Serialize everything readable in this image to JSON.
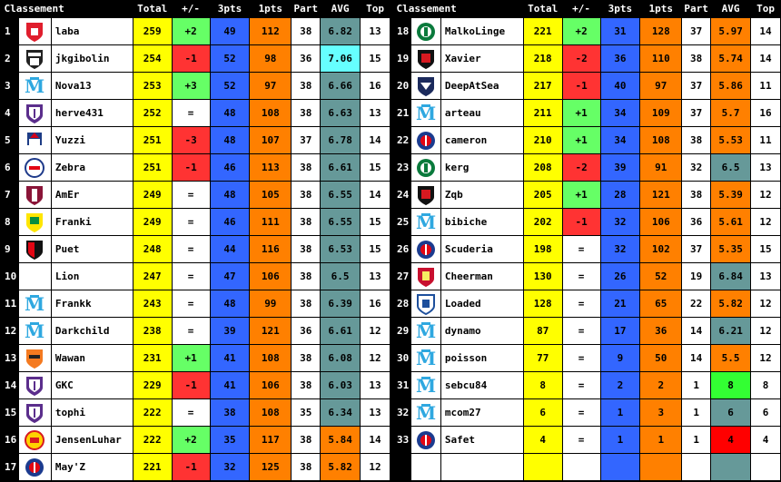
{
  "header": {
    "classement": "Classement",
    "total": "Total",
    "diff": "+/-",
    "pts3": "3pts",
    "pts1": "1pts",
    "part": "Part",
    "avg": "AVG",
    "top": "Top"
  },
  "colors": {
    "total": "#ffff00",
    "positive": "#66ff66",
    "negative": "#ff3333",
    "pts3": "#3366ff",
    "pts1": "#ff8000",
    "avg_default": "#669999",
    "avg_cyan": "#66ffff",
    "avg_orange": "#ff8000",
    "avg_green": "#33ff33",
    "avg_red": "#ff0000"
  },
  "left_rows": [
    {
      "rank": "1",
      "logo": "lille-crest",
      "name": "laba",
      "total": "259",
      "diff": "+2",
      "pts3": "49",
      "pts1": "112",
      "part": "38",
      "avg": "6.82",
      "top": "13",
      "avg_style": "default"
    },
    {
      "rank": "2",
      "logo": "angers-crest",
      "name": "jkgibolin",
      "total": "254",
      "diff": "-1",
      "pts3": "52",
      "pts1": "98",
      "part": "36",
      "avg": "7.06",
      "top": "15",
      "avg_style": "cyan"
    },
    {
      "rank": "3",
      "logo": "marseille-crest",
      "name": "Nova13",
      "total": "253",
      "diff": "+3",
      "pts3": "52",
      "pts1": "97",
      "part": "38",
      "avg": "6.66",
      "top": "16",
      "avg_style": "default"
    },
    {
      "rank": "4",
      "logo": "toulouse-crest",
      "name": "herve431",
      "total": "252",
      "diff": "=",
      "pts3": "48",
      "pts1": "108",
      "part": "38",
      "avg": "6.63",
      "top": "13",
      "avg_style": "default"
    },
    {
      "rank": "5",
      "logo": "caen-crest",
      "name": "Yuzzi",
      "total": "251",
      "diff": "-3",
      "pts3": "48",
      "pts1": "107",
      "part": "37",
      "avg": "6.78",
      "top": "14",
      "avg_style": "default"
    },
    {
      "rank": "6",
      "logo": "lyon-crest",
      "name": "Zebra",
      "total": "251",
      "diff": "-1",
      "pts3": "46",
      "pts1": "113",
      "part": "38",
      "avg": "6.61",
      "top": "15",
      "avg_style": "default"
    },
    {
      "rank": "7",
      "logo": "metz-crest",
      "name": "AmEr",
      "total": "249",
      "diff": "=",
      "pts3": "48",
      "pts1": "105",
      "part": "38",
      "avg": "6.55",
      "top": "14",
      "avg_style": "default"
    },
    {
      "rank": "8",
      "logo": "nantes-crest",
      "name": "Franki",
      "total": "249",
      "diff": "=",
      "pts3": "46",
      "pts1": "111",
      "part": "38",
      "avg": "6.55",
      "top": "15",
      "avg_style": "default"
    },
    {
      "rank": "9",
      "logo": "rennes-crest",
      "name": "Puet",
      "total": "248",
      "diff": "=",
      "pts3": "44",
      "pts1": "116",
      "part": "38",
      "avg": "6.53",
      "top": "15",
      "avg_style": "default"
    },
    {
      "rank": "10",
      "logo": "",
      "name": "Lion",
      "total": "247",
      "diff": "=",
      "pts3": "47",
      "pts1": "106",
      "part": "38",
      "avg": "6.5",
      "top": "13",
      "avg_style": "default"
    },
    {
      "rank": "11",
      "logo": "marseille-crest",
      "name": "Frankk",
      "total": "243",
      "diff": "=",
      "pts3": "48",
      "pts1": "99",
      "part": "38",
      "avg": "6.39",
      "top": "16",
      "avg_style": "default"
    },
    {
      "rank": "12",
      "logo": "marseille-crest",
      "name": "Darkchild",
      "total": "238",
      "diff": "=",
      "pts3": "39",
      "pts1": "121",
      "part": "36",
      "avg": "6.61",
      "top": "12",
      "avg_style": "default"
    },
    {
      "rank": "13",
      "logo": "lorient-crest",
      "name": "Wawan",
      "total": "231",
      "diff": "+1",
      "pts3": "41",
      "pts1": "108",
      "part": "38",
      "avg": "6.08",
      "top": "12",
      "avg_style": "default"
    },
    {
      "rank": "14",
      "logo": "toulouse-crest",
      "name": "GKC",
      "total": "229",
      "diff": "-1",
      "pts3": "41",
      "pts1": "106",
      "part": "38",
      "avg": "6.03",
      "top": "13",
      "avg_style": "default"
    },
    {
      "rank": "15",
      "logo": "toulouse-crest",
      "name": "tophi",
      "total": "222",
      "diff": "=",
      "pts3": "38",
      "pts1": "108",
      "part": "35",
      "avg": "6.34",
      "top": "13",
      "avg_style": "default"
    },
    {
      "rank": "16",
      "logo": "manutd-crest",
      "name": "JensenLuhar",
      "total": "222",
      "diff": "+2",
      "pts3": "35",
      "pts1": "117",
      "part": "38",
      "avg": "5.84",
      "top": "14",
      "avg_style": "orange"
    },
    {
      "rank": "17",
      "logo": "psg-crest",
      "name": "May'Z",
      "total": "221",
      "diff": "-1",
      "pts3": "32",
      "pts1": "125",
      "part": "38",
      "avg": "5.82",
      "top": "12",
      "avg_style": "orange"
    }
  ],
  "right_rows": [
    {
      "rank": "18",
      "logo": "stetienne-crest",
      "name": "MalkoLinge",
      "total": "221",
      "diff": "+2",
      "pts3": "31",
      "pts1": "128",
      "part": "37",
      "avg": "5.97",
      "top": "14",
      "avg_style": "orange"
    },
    {
      "rank": "19",
      "logo": "nice-crest",
      "name": "Xavier",
      "total": "218",
      "diff": "-2",
      "pts3": "36",
      "pts1": "110",
      "part": "38",
      "avg": "5.74",
      "top": "14",
      "avg_style": "orange"
    },
    {
      "rank": "20",
      "logo": "bordeaux-crest",
      "name": "DeepAtSea",
      "total": "217",
      "diff": "-1",
      "pts3": "40",
      "pts1": "97",
      "part": "37",
      "avg": "5.86",
      "top": "11",
      "avg_style": "orange"
    },
    {
      "rank": "21",
      "logo": "marseille-crest",
      "name": "arteau",
      "total": "211",
      "diff": "+1",
      "pts3": "34",
      "pts1": "109",
      "part": "37",
      "avg": "5.7",
      "top": "16",
      "avg_style": "orange"
    },
    {
      "rank": "22",
      "logo": "psg-crest",
      "name": "cameron",
      "total": "210",
      "diff": "+1",
      "pts3": "34",
      "pts1": "108",
      "part": "38",
      "avg": "5.53",
      "top": "11",
      "avg_style": "orange"
    },
    {
      "rank": "23",
      "logo": "stetienne-crest",
      "name": "kerg",
      "total": "208",
      "diff": "-2",
      "pts3": "39",
      "pts1": "91",
      "part": "32",
      "avg": "6.5",
      "top": "13",
      "avg_style": "default"
    },
    {
      "rank": "24",
      "logo": "nice-crest",
      "name": "Zqb",
      "total": "205",
      "diff": "+1",
      "pts3": "28",
      "pts1": "121",
      "part": "38",
      "avg": "5.39",
      "top": "12",
      "avg_style": "orange"
    },
    {
      "rank": "25",
      "logo": "marseille-crest",
      "name": "bibiche",
      "total": "202",
      "diff": "-1",
      "pts3": "32",
      "pts1": "106",
      "part": "36",
      "avg": "5.61",
      "top": "12",
      "avg_style": "orange"
    },
    {
      "rank": "26",
      "logo": "psg-crest",
      "name": "Scuderia",
      "total": "198",
      "diff": "=",
      "pts3": "32",
      "pts1": "102",
      "part": "37",
      "avg": "5.35",
      "top": "15",
      "avg_style": "orange"
    },
    {
      "rank": "27",
      "logo": "liverpool-crest",
      "name": "Cheerman",
      "total": "130",
      "diff": "=",
      "pts3": "26",
      "pts1": "52",
      "part": "19",
      "avg": "6.84",
      "top": "13",
      "avg_style": "default"
    },
    {
      "rank": "28",
      "logo": "auxerre-crest",
      "name": "Loaded",
      "total": "128",
      "diff": "=",
      "pts3": "21",
      "pts1": "65",
      "part": "22",
      "avg": "5.82",
      "top": "12",
      "avg_style": "orange"
    },
    {
      "rank": "29",
      "logo": "marseille-crest",
      "name": "dynamo",
      "total": "87",
      "diff": "=",
      "pts3": "17",
      "pts1": "36",
      "part": "14",
      "avg": "6.21",
      "top": "12",
      "avg_style": "default"
    },
    {
      "rank": "30",
      "logo": "marseille-crest",
      "name": "poisson",
      "total": "77",
      "diff": "=",
      "pts3": "9",
      "pts1": "50",
      "part": "14",
      "avg": "5.5",
      "top": "12",
      "avg_style": "orange"
    },
    {
      "rank": "31",
      "logo": "marseille-crest",
      "name": "sebcu84",
      "total": "8",
      "diff": "=",
      "pts3": "2",
      "pts1": "2",
      "part": "1",
      "avg": "8",
      "top": "8",
      "avg_style": "green"
    },
    {
      "rank": "32",
      "logo": "marseille-crest",
      "name": "mcom27",
      "total": "6",
      "diff": "=",
      "pts3": "1",
      "pts1": "3",
      "part": "1",
      "avg": "6",
      "top": "6",
      "avg_style": "default"
    },
    {
      "rank": "33",
      "logo": "psg-crest",
      "name": "Safet",
      "total": "4",
      "diff": "=",
      "pts3": "1",
      "pts1": "1",
      "part": "1",
      "avg": "4",
      "top": "4",
      "avg_style": "red"
    },
    {
      "rank": "",
      "logo": "",
      "name": "",
      "total": "",
      "diff": "",
      "pts3": "",
      "pts1": "",
      "part": "",
      "avg": "",
      "top": "",
      "avg_style": "blank"
    }
  ]
}
